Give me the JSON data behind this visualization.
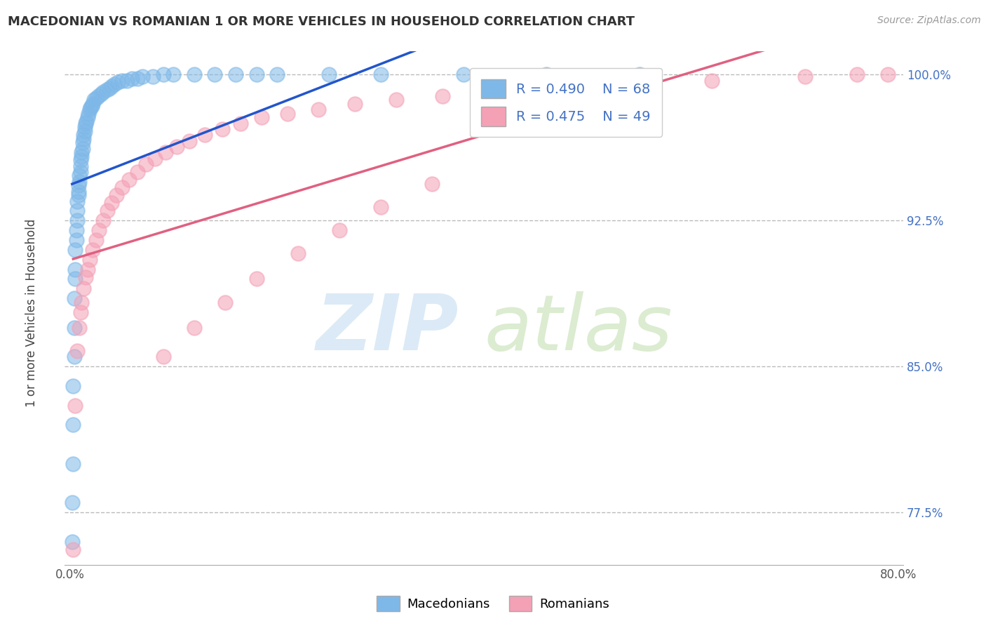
{
  "title": "MACEDONIAN VS ROMANIAN 1 OR MORE VEHICLES IN HOUSEHOLD CORRELATION CHART",
  "source": "Source: ZipAtlas.com",
  "ylabel": "1 or more Vehicles in Household",
  "xlim": [
    -0.005,
    0.805
  ],
  "ylim": [
    0.748,
    1.012
  ],
  "xtick_labels": [
    "0.0%",
    "",
    "",
    "",
    "",
    "",
    "",
    "",
    "80.0%"
  ],
  "xtick_values": [
    0.0,
    0.1,
    0.2,
    0.3,
    0.4,
    0.5,
    0.6,
    0.7,
    0.8
  ],
  "ytick_labels": [
    "100.0%",
    "92.5%",
    "85.0%",
    "77.5%"
  ],
  "ytick_values": [
    1.0,
    0.925,
    0.85,
    0.775
  ],
  "hlines": [
    1.0,
    0.925,
    0.85,
    0.775
  ],
  "blue_color": "#7EB8E8",
  "pink_color": "#F4A0B5",
  "blue_line_color": "#2255CC",
  "pink_line_color": "#E06080",
  "R_blue": 0.49,
  "N_blue": 68,
  "R_pink": 0.475,
  "N_pink": 49,
  "legend_label_blue": "Macedonians",
  "legend_label_pink": "Romanians",
  "mac_x": [
    0.002,
    0.002,
    0.003,
    0.003,
    0.003,
    0.004,
    0.004,
    0.004,
    0.005,
    0.005,
    0.005,
    0.006,
    0.006,
    0.007,
    0.007,
    0.007,
    0.008,
    0.008,
    0.008,
    0.009,
    0.009,
    0.01,
    0.01,
    0.01,
    0.011,
    0.011,
    0.012,
    0.012,
    0.013,
    0.013,
    0.014,
    0.014,
    0.015,
    0.016,
    0.017,
    0.018,
    0.019,
    0.02,
    0.021,
    0.022,
    0.023,
    0.025,
    0.027,
    0.03,
    0.032,
    0.035,
    0.038,
    0.04,
    0.043,
    0.046,
    0.05,
    0.055,
    0.06,
    0.065,
    0.07,
    0.08,
    0.09,
    0.1,
    0.12,
    0.14,
    0.16,
    0.18,
    0.2,
    0.25,
    0.3,
    0.38,
    0.46,
    0.55
  ],
  "mac_y": [
    0.76,
    0.78,
    0.8,
    0.82,
    0.84,
    0.855,
    0.87,
    0.885,
    0.895,
    0.9,
    0.91,
    0.915,
    0.92,
    0.925,
    0.93,
    0.935,
    0.938,
    0.94,
    0.943,
    0.945,
    0.948,
    0.95,
    0.953,
    0.956,
    0.958,
    0.96,
    0.962,
    0.965,
    0.967,
    0.969,
    0.971,
    0.973,
    0.975,
    0.976,
    0.978,
    0.98,
    0.982,
    0.983,
    0.984,
    0.985,
    0.987,
    0.988,
    0.989,
    0.99,
    0.991,
    0.992,
    0.993,
    0.994,
    0.995,
    0.996,
    0.997,
    0.997,
    0.998,
    0.998,
    0.999,
    0.999,
    1.0,
    1.0,
    1.0,
    1.0,
    1.0,
    1.0,
    1.0,
    1.0,
    1.0,
    1.0,
    1.0,
    1.0
  ],
  "rom_x": [
    0.003,
    0.005,
    0.007,
    0.009,
    0.01,
    0.011,
    0.013,
    0.015,
    0.017,
    0.019,
    0.022,
    0.025,
    0.028,
    0.032,
    0.036,
    0.04,
    0.045,
    0.05,
    0.057,
    0.065,
    0.073,
    0.082,
    0.092,
    0.103,
    0.115,
    0.13,
    0.147,
    0.165,
    0.185,
    0.21,
    0.24,
    0.275,
    0.315,
    0.36,
    0.41,
    0.47,
    0.54,
    0.62,
    0.71,
    0.76,
    0.79,
    0.09,
    0.12,
    0.15,
    0.18,
    0.22,
    0.26,
    0.3,
    0.35
  ],
  "rom_y": [
    0.756,
    0.83,
    0.858,
    0.87,
    0.878,
    0.883,
    0.89,
    0.896,
    0.9,
    0.905,
    0.91,
    0.915,
    0.92,
    0.925,
    0.93,
    0.934,
    0.938,
    0.942,
    0.946,
    0.95,
    0.954,
    0.957,
    0.96,
    0.963,
    0.966,
    0.969,
    0.972,
    0.975,
    0.978,
    0.98,
    0.982,
    0.985,
    0.987,
    0.989,
    0.991,
    0.993,
    0.995,
    0.997,
    0.999,
    1.0,
    1.0,
    0.855,
    0.87,
    0.883,
    0.895,
    0.908,
    0.92,
    0.932,
    0.944
  ]
}
